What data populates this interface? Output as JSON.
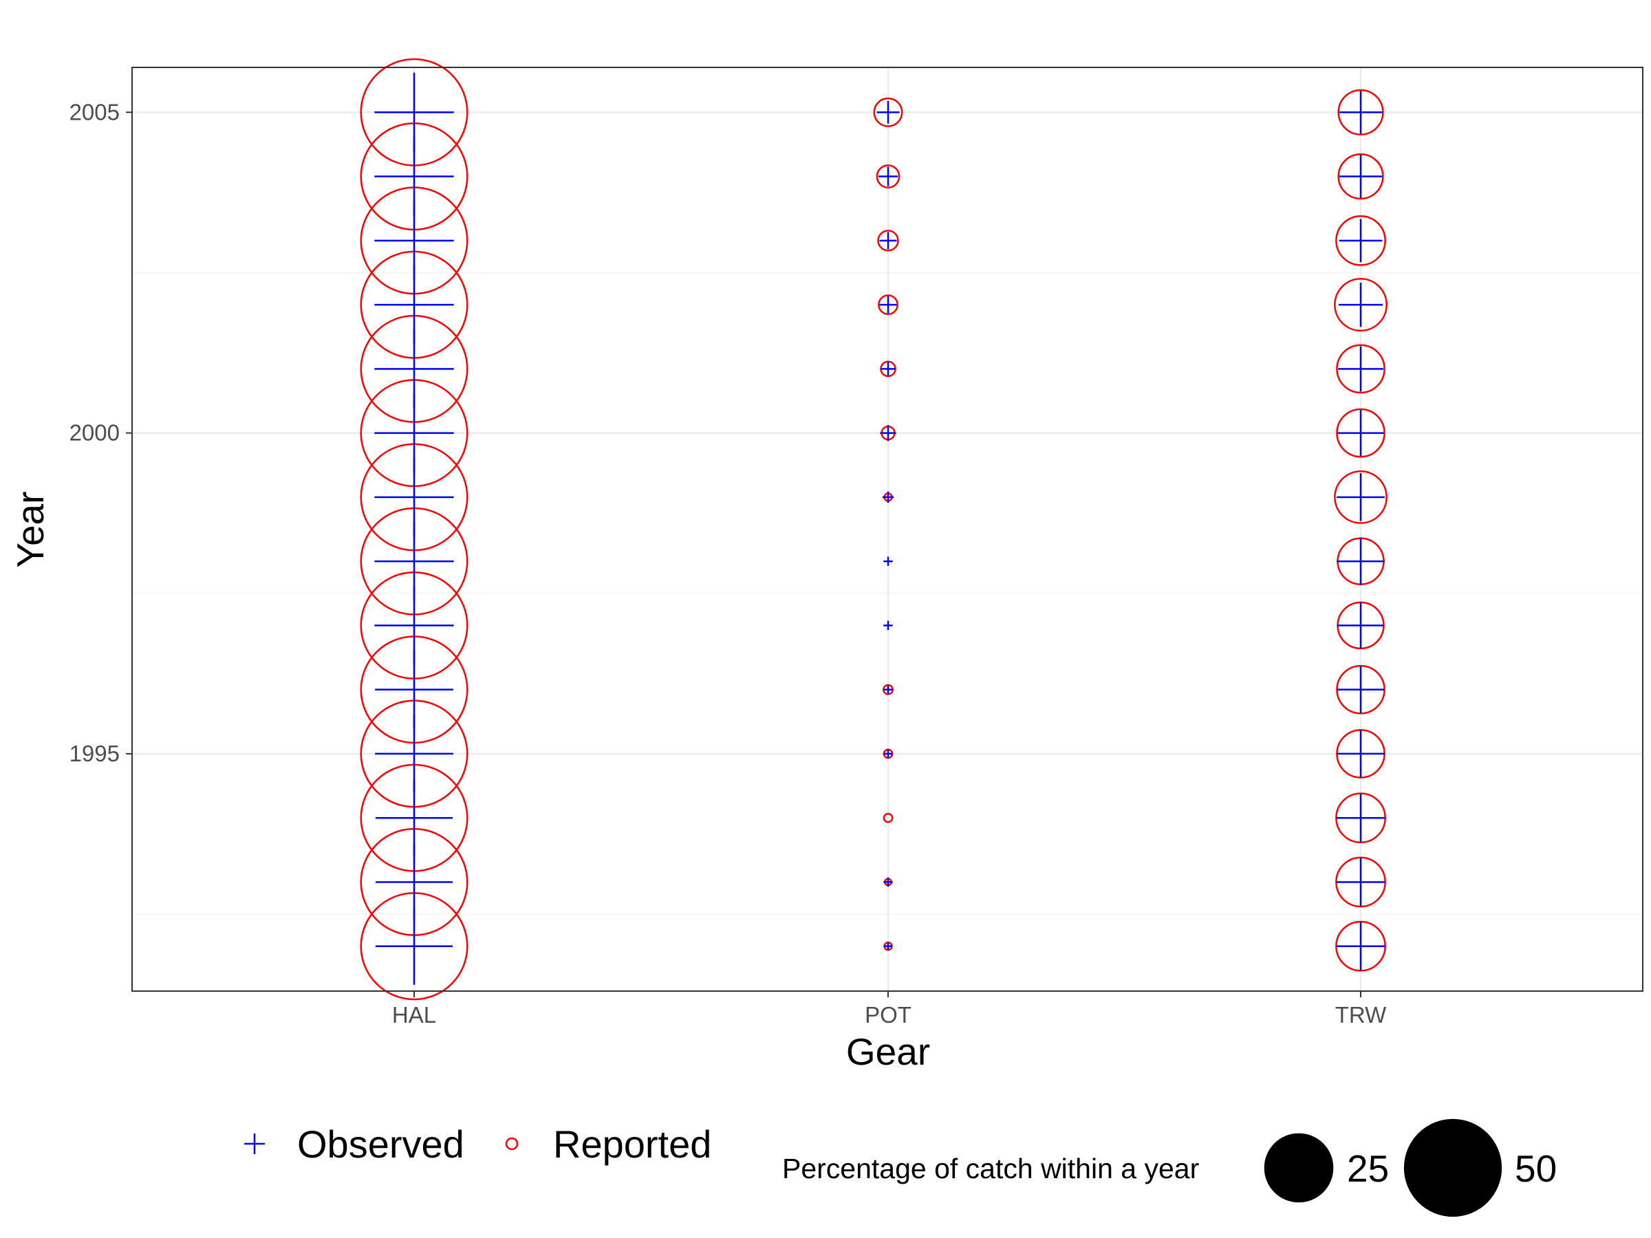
{
  "chart_data": {
    "type": "scatter",
    "xlabel": "Gear",
    "ylabel": "Year",
    "categories": [
      "HAL",
      "POT",
      "TRW"
    ],
    "ylim": [
      1991.3,
      2005.7
    ],
    "yticks": [
      1995,
      2000,
      2005
    ],
    "grid": true,
    "legend_position": "bottom",
    "series": [
      {
        "name": "Observed",
        "marker": "plus",
        "color": "#0000ff",
        "points": {
          "HAL": {
            "1992": 70,
            "1993": 70,
            "1994": 70,
            "1995": 72,
            "1996": 72,
            "1997": 74,
            "1998": 74,
            "1999": 74,
            "2000": 74,
            "2001": 74,
            "2002": 74,
            "2003": 74,
            "2004": 74,
            "2005": 74
          },
          "POT": {
            "1992": 0.8,
            "1993": 1,
            "1994": 0,
            "1995": 1,
            "1996": 1,
            "1997": 1,
            "1998": 1,
            "1999": 1.5,
            "2000": 3,
            "2001": 2.5,
            "2002": 3.5,
            "2003": 3.5,
            "2004": 4.5,
            "2005": 6
          },
          "TRW": {
            "1992": 28,
            "1993": 28,
            "1994": 28,
            "1995": 27,
            "1996": 26,
            "1997": 26,
            "1998": 27,
            "1999": 27,
            "2000": 25,
            "2001": 24,
            "2002": 23,
            "2003": 22,
            "2004": 22,
            "2005": 22
          }
        }
      },
      {
        "name": "Reported",
        "marker": "open-circle",
        "color": "#ff0000",
        "points": {
          "HAL": {
            "1992": 80,
            "1993": 80,
            "1994": 80,
            "1995": 80,
            "1996": 80,
            "1997": 80,
            "1998": 80,
            "1999": 80,
            "2000": 80,
            "2001": 80,
            "2002": 80,
            "2003": 80,
            "2004": 80,
            "2005": 80
          },
          "POT": {
            "1992": 0.4,
            "1993": 0.3,
            "1994": 0.5,
            "1995": 0.5,
            "1996": 0.6,
            "1997": 0,
            "1998": 0,
            "1999": 0.4,
            "2000": 1.2,
            "2001": 1.5,
            "2002": 2.5,
            "2003": 2.8,
            "2004": 3.5,
            "2005": 5.5
          },
          "TRW": {
            "1992": 17,
            "1993": 17,
            "1994": 17,
            "1995": 16,
            "1996": 16,
            "1997": 15,
            "1998": 15,
            "1999": 19,
            "2000": 16,
            "2001": 16,
            "2002": 19,
            "2003": 17,
            "2004": 14,
            "2005": 14
          }
        }
      }
    ],
    "size_legend": {
      "title": "Percentage of catch within a year",
      "values": [
        25,
        50
      ],
      "labels": [
        "25",
        "50"
      ]
    }
  },
  "colors": {
    "observed": "#0000ff",
    "reported": "#ff0000",
    "panel_border": "#333333",
    "grid_major": "#ebebeb",
    "grid_minor": "#f3f3f3"
  }
}
